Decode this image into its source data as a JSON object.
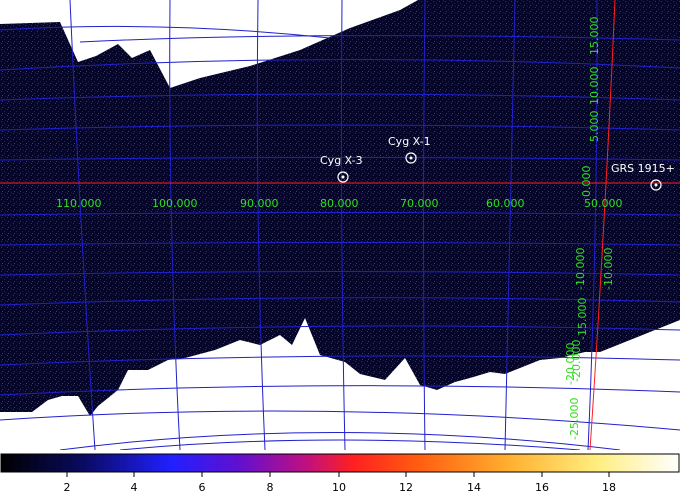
{
  "map": {
    "sources": [
      {
        "name": "Cyg X-3"
      },
      {
        "name": "Cyg X-1"
      },
      {
        "name": "GRS 1915+"
      }
    ],
    "longitude_labels": [
      "110.000",
      "100.000",
      "90.000",
      "80.000",
      "70.000",
      "60.000",
      "50.000"
    ],
    "latitude_labels": [
      "15.000",
      "10.000",
      "5.000",
      "0.000",
      "-10.000",
      "-15.000",
      "-20.000",
      "-25.000",
      "-20.000",
      "-10.000"
    ],
    "colors": {
      "background": "#ffffff",
      "exposure_field": "#05052a",
      "grid": "#2020cc",
      "galactic_plane": "#ff2020",
      "label_green": "#33dd22"
    }
  },
  "colorbar": {
    "tick_labels": [
      "2",
      "4",
      "6",
      "8",
      "10",
      "12",
      "14",
      "16",
      "18"
    ]
  }
}
